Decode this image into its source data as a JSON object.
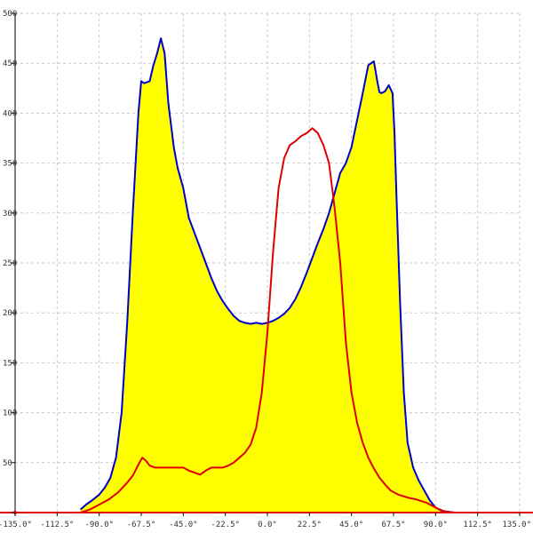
{
  "chart_data": {
    "type": "line",
    "title": "",
    "xlabel": "",
    "ylabel": "",
    "xlim": [
      -135,
      135
    ],
    "ylim": [
      0,
      500
    ],
    "grid": true,
    "x_ticks": [
      -135,
      -112.5,
      -90,
      -67.5,
      -45,
      -22.5,
      0,
      22.5,
      45,
      67.5,
      90,
      112.5,
      135
    ],
    "x_tick_labels": [
      "-135.0°",
      "-112.5°",
      "-90.0°",
      "-67.5°",
      "-45.0°",
      "-22.5°",
      "0.0°",
      "22.5°",
      "45.0°",
      "67.5°",
      "90.0°",
      "112.5°",
      "135.0°"
    ],
    "y_ticks": [
      0,
      50,
      100,
      150,
      200,
      250,
      300,
      350,
      400,
      450,
      500
    ],
    "y_tick_labels": [
      "0",
      "50",
      "100",
      "150",
      "200",
      "250",
      "300",
      "350",
      "400",
      "450",
      "500"
    ],
    "series": [
      {
        "color": "#0000cc",
        "fill": "#ffff00",
        "filled": true,
        "x": [
          -100,
          -97,
          -94,
          -90,
          -87,
          -84,
          -81,
          -78,
          -75,
          -72,
          -69,
          -67.5,
          -66,
          -63,
          -61,
          -59,
          -57,
          -55,
          -53,
          -50,
          -48,
          -45,
          -42,
          -39,
          -36,
          -33,
          -30,
          -27,
          -24,
          -21,
          -18,
          -15,
          -12,
          -9,
          -6,
          -3,
          0,
          3,
          6,
          9,
          12,
          15,
          18,
          21,
          24,
          27,
          30,
          33,
          36,
          39,
          42,
          45,
          48,
          51,
          54,
          57,
          59,
          60,
          61,
          63,
          65,
          67,
          68,
          69,
          71,
          73,
          75,
          78,
          81,
          84,
          87,
          90,
          93,
          96,
          100
        ],
        "y": [
          3,
          8,
          12,
          18,
          25,
          35,
          55,
          100,
          190,
          300,
          400,
          432,
          430,
          432,
          448,
          460,
          475,
          460,
          410,
          365,
          345,
          325,
          295,
          280,
          265,
          250,
          235,
          222,
          212,
          204,
          197,
          192,
          190,
          189,
          190,
          189,
          190,
          192,
          195,
          199,
          205,
          214,
          226,
          240,
          255,
          270,
          284,
          300,
          320,
          340,
          350,
          366,
          393,
          420,
          448,
          452,
          430,
          421,
          420,
          422,
          428,
          420,
          380,
          320,
          210,
          120,
          70,
          45,
          32,
          22,
          12,
          5,
          2,
          1,
          0
        ]
      },
      {
        "color": "#e00000",
        "filled": false,
        "x": [
          -100,
          -95,
          -90,
          -85,
          -80,
          -75,
          -72,
          -69,
          -67,
          -65,
          -63,
          -60,
          -55,
          -50,
          -45,
          -42,
          -39,
          -36,
          -33,
          -30,
          -27,
          -24,
          -21,
          -18,
          -15,
          -12,
          -9,
          -6,
          -3,
          0,
          3,
          6,
          9,
          12,
          15,
          18,
          21,
          24,
          27,
          30,
          33,
          36,
          39,
          42,
          45,
          48,
          51,
          54,
          57,
          60,
          63,
          66,
          70,
          75,
          80,
          85,
          90,
          95,
          100
        ],
        "y": [
          0,
          3,
          8,
          13,
          20,
          30,
          37,
          48,
          55,
          52,
          47,
          45,
          45,
          45,
          45,
          42,
          40,
          38,
          42,
          45,
          45,
          45,
          47,
          50,
          55,
          60,
          68,
          85,
          120,
          180,
          260,
          325,
          355,
          368,
          372,
          377,
          380,
          385,
          380,
          368,
          350,
          305,
          250,
          170,
          120,
          90,
          70,
          55,
          44,
          35,
          28,
          22,
          18,
          15,
          13,
          10,
          5,
          1,
          0
        ]
      }
    ]
  }
}
